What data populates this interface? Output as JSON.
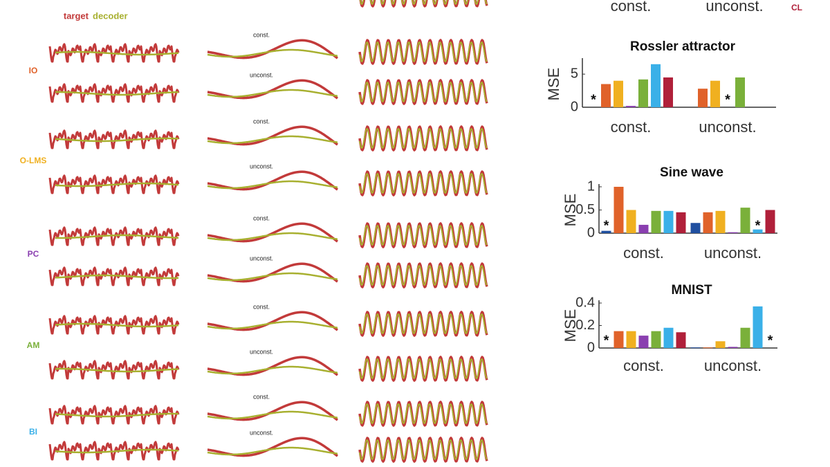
{
  "legend_top": {
    "target": "target",
    "decoder": "decoder"
  },
  "methods": [
    {
      "label": "IO",
      "color": "#e0622a"
    },
    {
      "label": "O-LMS",
      "color": "#f0b020"
    },
    {
      "label": "PC",
      "color": "#8a3fb0"
    },
    {
      "label": "AM",
      "color": "#7ab03a"
    },
    {
      "label": "BI",
      "color": "#3ab0e8"
    },
    {
      "label": "CL",
      "color": "#b0203a"
    }
  ],
  "trace_labels": [
    "const.",
    "unconst.",
    "const.",
    "unconst.",
    "const.",
    "unconst.",
    "const.",
    "unconst.",
    "const.",
    "unconst."
  ],
  "cropped_chart": {
    "categories": [
      "const.",
      "unconst."
    ]
  },
  "chart_data": [
    {
      "type": "bar",
      "title": "Rossler attractor",
      "ylabel": "MSE",
      "categories": [
        "const.",
        "unconst."
      ],
      "series": [
        {
          "color": "#1f4fa0",
          "values": [
            null,
            null
          ]
        },
        {
          "color": "#e0622a",
          "values": [
            3.5,
            2.8
          ]
        },
        {
          "color": "#f0b020",
          "values": [
            4,
            4
          ]
        },
        {
          "color": "#8a3fb0",
          "values": [
            0.2,
            null
          ]
        },
        {
          "color": "#7ab03a",
          "values": [
            4.2,
            4.5
          ]
        },
        {
          "color": "#3ab0e8",
          "values": [
            6.5,
            null
          ]
        },
        {
          "color": "#b0203a",
          "values": [
            4.5,
            null
          ]
        }
      ],
      "ylim": [
        0,
        7
      ],
      "yticks": [
        0,
        5
      ],
      "asterisks": [
        {
          "text": "*",
          "category": 0,
          "series": 0
        },
        {
          "text": "*",
          "category": 1,
          "series": 3
        }
      ]
    },
    {
      "type": "bar",
      "title": "Sine wave",
      "ylabel": "MSE",
      "categories": [
        "const.",
        "unconst."
      ],
      "series": [
        {
          "color": "#1f4fa0",
          "values": [
            0.05,
            0.22
          ]
        },
        {
          "color": "#e0622a",
          "values": [
            1,
            0.45
          ]
        },
        {
          "color": "#f0b020",
          "values": [
            0.5,
            0.48
          ]
        },
        {
          "color": "#8a3fb0",
          "values": [
            0.18,
            0.02
          ]
        },
        {
          "color": "#7ab03a",
          "values": [
            0.48,
            0.55
          ]
        },
        {
          "color": "#3ab0e8",
          "values": [
            0.48,
            0.08
          ]
        },
        {
          "color": "#b0203a",
          "values": [
            0.45,
            0.5
          ]
        }
      ],
      "ylim": [
        0,
        1
      ],
      "yticks": [
        0,
        0.5,
        1
      ],
      "asterisks": [
        {
          "text": "*",
          "category": 0,
          "series": 0
        },
        {
          "text": "*",
          "category": 1,
          "series": 5
        }
      ]
    },
    {
      "type": "bar",
      "title": "MNIST",
      "ylabel": "MSE",
      "categories": [
        "const.",
        "unconst."
      ],
      "series": [
        {
          "color": "#1f4fa0",
          "values": [
            null,
            0.005
          ]
        },
        {
          "color": "#e0622a",
          "values": [
            0.15,
            0.005
          ]
        },
        {
          "color": "#f0b020",
          "values": [
            0.15,
            0.06
          ]
        },
        {
          "color": "#8a3fb0",
          "values": [
            0.11,
            0.01
          ]
        },
        {
          "color": "#7ab03a",
          "values": [
            0.15,
            0.18
          ]
        },
        {
          "color": "#3ab0e8",
          "values": [
            0.18,
            0.37
          ]
        },
        {
          "color": "#b0203a",
          "values": [
            0.14,
            null
          ]
        }
      ],
      "ylim": [
        0,
        0.4
      ],
      "yticks": [
        0,
        0.2,
        0.4
      ],
      "asterisks": [
        {
          "text": "*",
          "category": 0,
          "series": 0
        },
        {
          "text": "*",
          "category": 1,
          "series": 6
        }
      ]
    }
  ]
}
